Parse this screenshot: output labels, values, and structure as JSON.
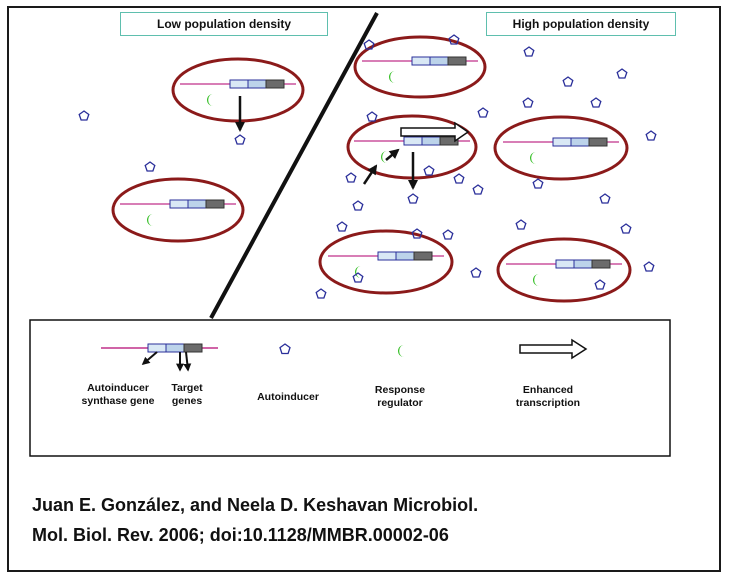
{
  "panels": {
    "low_label": "Low population density",
    "high_label": "High population density"
  },
  "legend": {
    "synthase_label": "Autoinducer synthase gene",
    "target_label": "Target genes",
    "autoinducer_label": "Autoinducer",
    "regulator_label": "Response regulator",
    "transcription_label": "Enhanced transcription"
  },
  "citation": {
    "line1": "Juan E. González, and Neela D. Keshavan Microbiol.",
    "line2": "Mol. Biol. Rev. 2006; doi:10.1128/MMBR.00002-06"
  },
  "colors": {
    "cell_border": "#8b1a1a",
    "dna_line": "#c0308a",
    "gene_box_fill": "#d9e8f5",
    "gene_box_mid": "#bcd3ea",
    "gene_box_dark": "#6b6b6b",
    "autoinducer": "#2a2f9a",
    "regulator": "#39c02a",
    "label_border": "#5fbfae"
  }
}
